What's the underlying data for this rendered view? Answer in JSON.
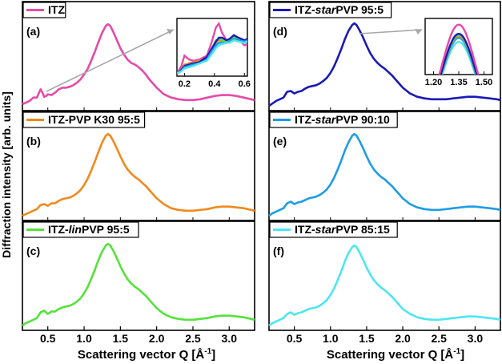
{
  "figure": {
    "ylabel": "Diffraction intensity [arb. units]",
    "xlabel_text": "Scattering vector Q [Å",
    "xlabel_exp": "-1",
    "xlabel_close": "]"
  },
  "chart_data": [
    {
      "type": "line",
      "panel": "(a)",
      "title": "ITZ",
      "legend_color": "#e64aa9",
      "xlim": [
        0.15,
        3.35
      ],
      "ylim": [
        0,
        1.05
      ],
      "x": [
        0.15,
        0.2,
        0.25,
        0.3,
        0.35,
        0.38,
        0.4,
        0.42,
        0.45,
        0.48,
        0.5,
        0.55,
        0.6,
        0.65,
        0.7,
        0.75,
        0.8,
        0.85,
        0.9,
        0.95,
        1.0,
        1.05,
        1.1,
        1.15,
        1.2,
        1.25,
        1.3,
        1.33,
        1.36,
        1.4,
        1.45,
        1.5,
        1.55,
        1.6,
        1.65,
        1.7,
        1.75,
        1.8,
        1.85,
        1.9,
        2.0,
        2.1,
        2.2,
        2.3,
        2.4,
        2.5,
        2.6,
        2.7,
        2.8,
        2.9,
        3.0,
        3.1,
        3.2,
        3.3,
        3.35
      ],
      "y": [
        0.02,
        0.04,
        0.06,
        0.1,
        0.1,
        0.16,
        0.2,
        0.17,
        0.11,
        0.12,
        0.14,
        0.13,
        0.16,
        0.2,
        0.22,
        0.22,
        0.23,
        0.25,
        0.28,
        0.32,
        0.38,
        0.45,
        0.55,
        0.66,
        0.78,
        0.89,
        0.97,
        0.99,
        0.97,
        0.9,
        0.8,
        0.7,
        0.62,
        0.56,
        0.52,
        0.5,
        0.47,
        0.43,
        0.38,
        0.32,
        0.22,
        0.14,
        0.1,
        0.08,
        0.07,
        0.07,
        0.08,
        0.1,
        0.12,
        0.13,
        0.13,
        0.12,
        0.1,
        0.08,
        0.07
      ]
    },
    {
      "type": "line",
      "panel": "(b)",
      "title": "ITZ-PVP K30 95:5",
      "legend_color": "#f08a1c",
      "xlim": [
        0.15,
        3.35
      ],
      "ylim": [
        0,
        1.05
      ],
      "x": [
        0.15,
        0.2,
        0.25,
        0.3,
        0.35,
        0.4,
        0.45,
        0.5,
        0.55,
        0.6,
        0.65,
        0.7,
        0.75,
        0.8,
        0.85,
        0.9,
        0.95,
        1.0,
        1.05,
        1.1,
        1.15,
        1.2,
        1.25,
        1.3,
        1.33,
        1.36,
        1.4,
        1.45,
        1.5,
        1.55,
        1.6,
        1.65,
        1.7,
        1.75,
        1.8,
        1.85,
        1.9,
        2.0,
        2.1,
        2.2,
        2.3,
        2.4,
        2.5,
        2.6,
        2.7,
        2.8,
        2.9,
        3.0,
        3.1,
        3.2,
        3.3,
        3.35
      ],
      "y": [
        0.0,
        0.02,
        0.04,
        0.06,
        0.08,
        0.13,
        0.14,
        0.12,
        0.15,
        0.15,
        0.18,
        0.2,
        0.21,
        0.22,
        0.24,
        0.27,
        0.31,
        0.37,
        0.45,
        0.55,
        0.66,
        0.78,
        0.89,
        0.97,
        0.99,
        0.97,
        0.91,
        0.82,
        0.72,
        0.63,
        0.56,
        0.51,
        0.47,
        0.44,
        0.4,
        0.36,
        0.31,
        0.21,
        0.14,
        0.09,
        0.07,
        0.06,
        0.06,
        0.07,
        0.08,
        0.1,
        0.11,
        0.11,
        0.1,
        0.09,
        0.07,
        0.06
      ]
    },
    {
      "type": "line",
      "panel": "(c)",
      "title": "ITZ-linPVP 95:5",
      "title_parts": [
        "ITZ-",
        "lin",
        "PVP 95:5"
      ],
      "legend_color": "#55e23a",
      "xlim": [
        0.15,
        3.35
      ],
      "ylim": [
        0,
        1.05
      ],
      "x": [
        0.15,
        0.2,
        0.25,
        0.3,
        0.35,
        0.4,
        0.45,
        0.5,
        0.55,
        0.6,
        0.65,
        0.7,
        0.75,
        0.8,
        0.85,
        0.9,
        0.95,
        1.0,
        1.05,
        1.1,
        1.15,
        1.2,
        1.25,
        1.3,
        1.33,
        1.36,
        1.4,
        1.45,
        1.5,
        1.55,
        1.6,
        1.65,
        1.7,
        1.75,
        1.8,
        1.85,
        1.9,
        2.0,
        2.1,
        2.2,
        2.3,
        2.4,
        2.5,
        2.6,
        2.7,
        2.8,
        2.9,
        3.0,
        3.1,
        3.2,
        3.3,
        3.35
      ],
      "y": [
        0.0,
        0.03,
        0.05,
        0.07,
        0.09,
        0.16,
        0.18,
        0.14,
        0.17,
        0.17,
        0.2,
        0.22,
        0.23,
        0.24,
        0.26,
        0.29,
        0.33,
        0.39,
        0.47,
        0.57,
        0.68,
        0.8,
        0.9,
        0.97,
        0.99,
        0.97,
        0.91,
        0.82,
        0.72,
        0.63,
        0.56,
        0.51,
        0.47,
        0.44,
        0.4,
        0.36,
        0.31,
        0.21,
        0.14,
        0.1,
        0.08,
        0.07,
        0.07,
        0.08,
        0.09,
        0.11,
        0.12,
        0.12,
        0.11,
        0.1,
        0.08,
        0.07
      ]
    },
    {
      "type": "line",
      "panel": "(d)",
      "title": "ITZ-starPVP 95:5",
      "title_parts": [
        "ITZ-",
        "star",
        "PVP 95:5"
      ],
      "legend_color": "#1a1ab8",
      "xlim": [
        0.15,
        3.35
      ],
      "ylim": [
        0,
        1.05
      ],
      "x": [
        0.15,
        0.2,
        0.25,
        0.3,
        0.35,
        0.4,
        0.45,
        0.5,
        0.55,
        0.6,
        0.65,
        0.7,
        0.75,
        0.8,
        0.85,
        0.9,
        0.95,
        1.0,
        1.05,
        1.1,
        1.15,
        1.2,
        1.25,
        1.3,
        1.33,
        1.36,
        1.4,
        1.45,
        1.5,
        1.55,
        1.6,
        1.65,
        1.7,
        1.75,
        1.8,
        1.85,
        1.9,
        2.0,
        2.1,
        2.2,
        2.3,
        2.4,
        2.5,
        2.6,
        2.7,
        2.8,
        2.9,
        3.0,
        3.1,
        3.2,
        3.3,
        3.35
      ],
      "y": [
        0.0,
        0.03,
        0.06,
        0.08,
        0.1,
        0.17,
        0.18,
        0.15,
        0.17,
        0.18,
        0.21,
        0.23,
        0.24,
        0.25,
        0.27,
        0.3,
        0.34,
        0.4,
        0.48,
        0.58,
        0.69,
        0.81,
        0.91,
        0.98,
        1.0,
        0.98,
        0.92,
        0.83,
        0.73,
        0.64,
        0.57,
        0.52,
        0.48,
        0.45,
        0.41,
        0.37,
        0.32,
        0.22,
        0.15,
        0.11,
        0.09,
        0.08,
        0.08,
        0.08,
        0.09,
        0.1,
        0.11,
        0.11,
        0.1,
        0.09,
        0.08,
        0.07
      ]
    },
    {
      "type": "line",
      "panel": "(e)",
      "title": "ITZ-starPVP 90:10",
      "title_parts": [
        "ITZ-",
        "star",
        "PVP 90:10"
      ],
      "legend_color": "#1e9ce6",
      "xlim": [
        0.15,
        3.35
      ],
      "ylim": [
        0,
        1.05
      ],
      "x": [
        0.15,
        0.2,
        0.25,
        0.3,
        0.35,
        0.4,
        0.45,
        0.5,
        0.55,
        0.6,
        0.65,
        0.7,
        0.75,
        0.8,
        0.85,
        0.9,
        0.95,
        1.0,
        1.05,
        1.1,
        1.15,
        1.2,
        1.25,
        1.3,
        1.33,
        1.36,
        1.4,
        1.45,
        1.5,
        1.55,
        1.6,
        1.65,
        1.7,
        1.75,
        1.8,
        1.85,
        1.9,
        2.0,
        2.1,
        2.2,
        2.3,
        2.4,
        2.5,
        2.6,
        2.7,
        2.8,
        2.9,
        3.0,
        3.1,
        3.2,
        3.3,
        3.35
      ],
      "y": [
        0.0,
        0.03,
        0.05,
        0.07,
        0.09,
        0.15,
        0.17,
        0.14,
        0.16,
        0.17,
        0.19,
        0.21,
        0.22,
        0.23,
        0.25,
        0.28,
        0.32,
        0.38,
        0.46,
        0.56,
        0.67,
        0.79,
        0.89,
        0.97,
        0.99,
        0.97,
        0.91,
        0.82,
        0.72,
        0.63,
        0.56,
        0.51,
        0.47,
        0.44,
        0.4,
        0.36,
        0.31,
        0.21,
        0.14,
        0.1,
        0.08,
        0.07,
        0.07,
        0.08,
        0.09,
        0.1,
        0.11,
        0.11,
        0.1,
        0.09,
        0.08,
        0.07
      ]
    },
    {
      "type": "line",
      "panel": "(f)",
      "title": "ITZ-starPVP 85:15",
      "title_parts": [
        "ITZ-",
        "star",
        "PVP 85:15"
      ],
      "legend_color": "#4de6f0",
      "xlim": [
        0.15,
        3.35
      ],
      "ylim": [
        0,
        1.05
      ],
      "x": [
        0.15,
        0.2,
        0.25,
        0.3,
        0.35,
        0.4,
        0.45,
        0.5,
        0.55,
        0.6,
        0.65,
        0.7,
        0.75,
        0.8,
        0.85,
        0.9,
        0.95,
        1.0,
        1.05,
        1.1,
        1.15,
        1.2,
        1.25,
        1.3,
        1.33,
        1.36,
        1.4,
        1.45,
        1.5,
        1.55,
        1.6,
        1.65,
        1.7,
        1.75,
        1.8,
        1.85,
        1.9,
        2.0,
        2.1,
        2.2,
        2.3,
        2.4,
        2.5,
        2.6,
        2.7,
        2.8,
        2.9,
        3.0,
        3.1,
        3.2,
        3.3,
        3.35
      ],
      "y": [
        0.0,
        0.03,
        0.05,
        0.07,
        0.09,
        0.14,
        0.16,
        0.13,
        0.15,
        0.16,
        0.18,
        0.2,
        0.21,
        0.22,
        0.24,
        0.27,
        0.31,
        0.37,
        0.45,
        0.55,
        0.66,
        0.78,
        0.88,
        0.95,
        0.97,
        0.95,
        0.89,
        0.8,
        0.7,
        0.62,
        0.55,
        0.5,
        0.46,
        0.43,
        0.39,
        0.35,
        0.3,
        0.2,
        0.14,
        0.1,
        0.08,
        0.07,
        0.07,
        0.08,
        0.09,
        0.1,
        0.11,
        0.11,
        0.1,
        0.09,
        0.08,
        0.07
      ]
    }
  ],
  "insets": {
    "a": {
      "xlim": [
        0.15,
        0.62
      ],
      "ylim": [
        0.0,
        0.45
      ],
      "xticks": [
        0.2,
        0.4,
        0.6
      ],
      "xtick_labels": [
        "0.2",
        "0.4",
        "0.6"
      ],
      "series": [
        {
          "color": "#e64aa9",
          "x": [
            0.15,
            0.18,
            0.2,
            0.23,
            0.26,
            0.3,
            0.35,
            0.38,
            0.41,
            0.43,
            0.45,
            0.48,
            0.5,
            0.53,
            0.56,
            0.6,
            0.62
          ],
          "y": [
            0.02,
            0.08,
            0.16,
            0.13,
            0.12,
            0.13,
            0.16,
            0.26,
            0.38,
            0.41,
            0.34,
            0.28,
            0.27,
            0.31,
            0.29,
            0.24,
            0.25
          ]
        },
        {
          "color": "#f08a1c",
          "x": [
            0.15,
            0.18,
            0.2,
            0.23,
            0.26,
            0.3,
            0.35,
            0.38,
            0.41,
            0.43,
            0.45,
            0.48,
            0.5,
            0.53,
            0.56,
            0.6,
            0.62
          ],
          "y": [
            0.02,
            0.05,
            0.09,
            0.1,
            0.11,
            0.12,
            0.14,
            0.2,
            0.26,
            0.28,
            0.27,
            0.26,
            0.27,
            0.3,
            0.29,
            0.26,
            0.27
          ]
        },
        {
          "color": "#55e23a",
          "x": [
            0.15,
            0.18,
            0.2,
            0.23,
            0.26,
            0.3,
            0.35,
            0.38,
            0.41,
            0.43,
            0.45,
            0.48,
            0.5,
            0.53,
            0.56,
            0.6,
            0.62
          ],
          "y": [
            0.02,
            0.05,
            0.08,
            0.09,
            0.1,
            0.11,
            0.14,
            0.21,
            0.28,
            0.29,
            0.28,
            0.27,
            0.28,
            0.31,
            0.29,
            0.27,
            0.28
          ]
        },
        {
          "color": "#1a1ab8",
          "x": [
            0.15,
            0.18,
            0.2,
            0.23,
            0.26,
            0.3,
            0.35,
            0.38,
            0.41,
            0.43,
            0.45,
            0.48,
            0.5,
            0.53,
            0.56,
            0.6,
            0.62
          ],
          "y": [
            0.02,
            0.05,
            0.08,
            0.09,
            0.1,
            0.11,
            0.15,
            0.21,
            0.27,
            0.3,
            0.3,
            0.28,
            0.29,
            0.32,
            0.3,
            0.28,
            0.29
          ]
        },
        {
          "color": "#1e9ce6",
          "x": [
            0.15,
            0.18,
            0.2,
            0.23,
            0.26,
            0.3,
            0.35,
            0.38,
            0.41,
            0.43,
            0.45,
            0.48,
            0.5,
            0.53,
            0.56,
            0.6,
            0.62
          ],
          "y": [
            0.02,
            0.04,
            0.07,
            0.08,
            0.09,
            0.1,
            0.13,
            0.19,
            0.24,
            0.26,
            0.26,
            0.26,
            0.27,
            0.29,
            0.28,
            0.27,
            0.28
          ]
        },
        {
          "color": "#4de6f0",
          "x": [
            0.15,
            0.18,
            0.2,
            0.23,
            0.26,
            0.3,
            0.35,
            0.38,
            0.41,
            0.43,
            0.45,
            0.48,
            0.5,
            0.53,
            0.56,
            0.6,
            0.62
          ],
          "y": [
            0.02,
            0.04,
            0.06,
            0.07,
            0.08,
            0.1,
            0.12,
            0.17,
            0.22,
            0.24,
            0.25,
            0.26,
            0.26,
            0.28,
            0.27,
            0.26,
            0.27
          ]
        }
      ]
    },
    "d": {
      "xlim": [
        1.15,
        1.55
      ],
      "ylim": [
        0.5,
        1.05
      ],
      "xticks": [
        1.2,
        1.35,
        1.5
      ],
      "xtick_labels": [
        "1.20",
        "1.35",
        "1.50"
      ],
      "peak": 1.35,
      "width": 0.14,
      "series": [
        {
          "color": "#4de6f0",
          "amp": 0.82
        },
        {
          "color": "#1e9ce6",
          "amp": 0.86
        },
        {
          "color": "#f08a1c",
          "amp": 0.88
        },
        {
          "color": "#55e23a",
          "amp": 0.89
        },
        {
          "color": "#1a1ab8",
          "amp": 0.9
        },
        {
          "color": "#e64aa9",
          "amp": 0.99
        }
      ]
    }
  },
  "bottom_axis": {
    "ticks": [
      0.5,
      1.0,
      1.5,
      2.0,
      2.5,
      3.0
    ],
    "tick_labels": [
      "0.5",
      "1.0",
      "1.5",
      "2.0",
      "2.5",
      "3.0"
    ]
  }
}
